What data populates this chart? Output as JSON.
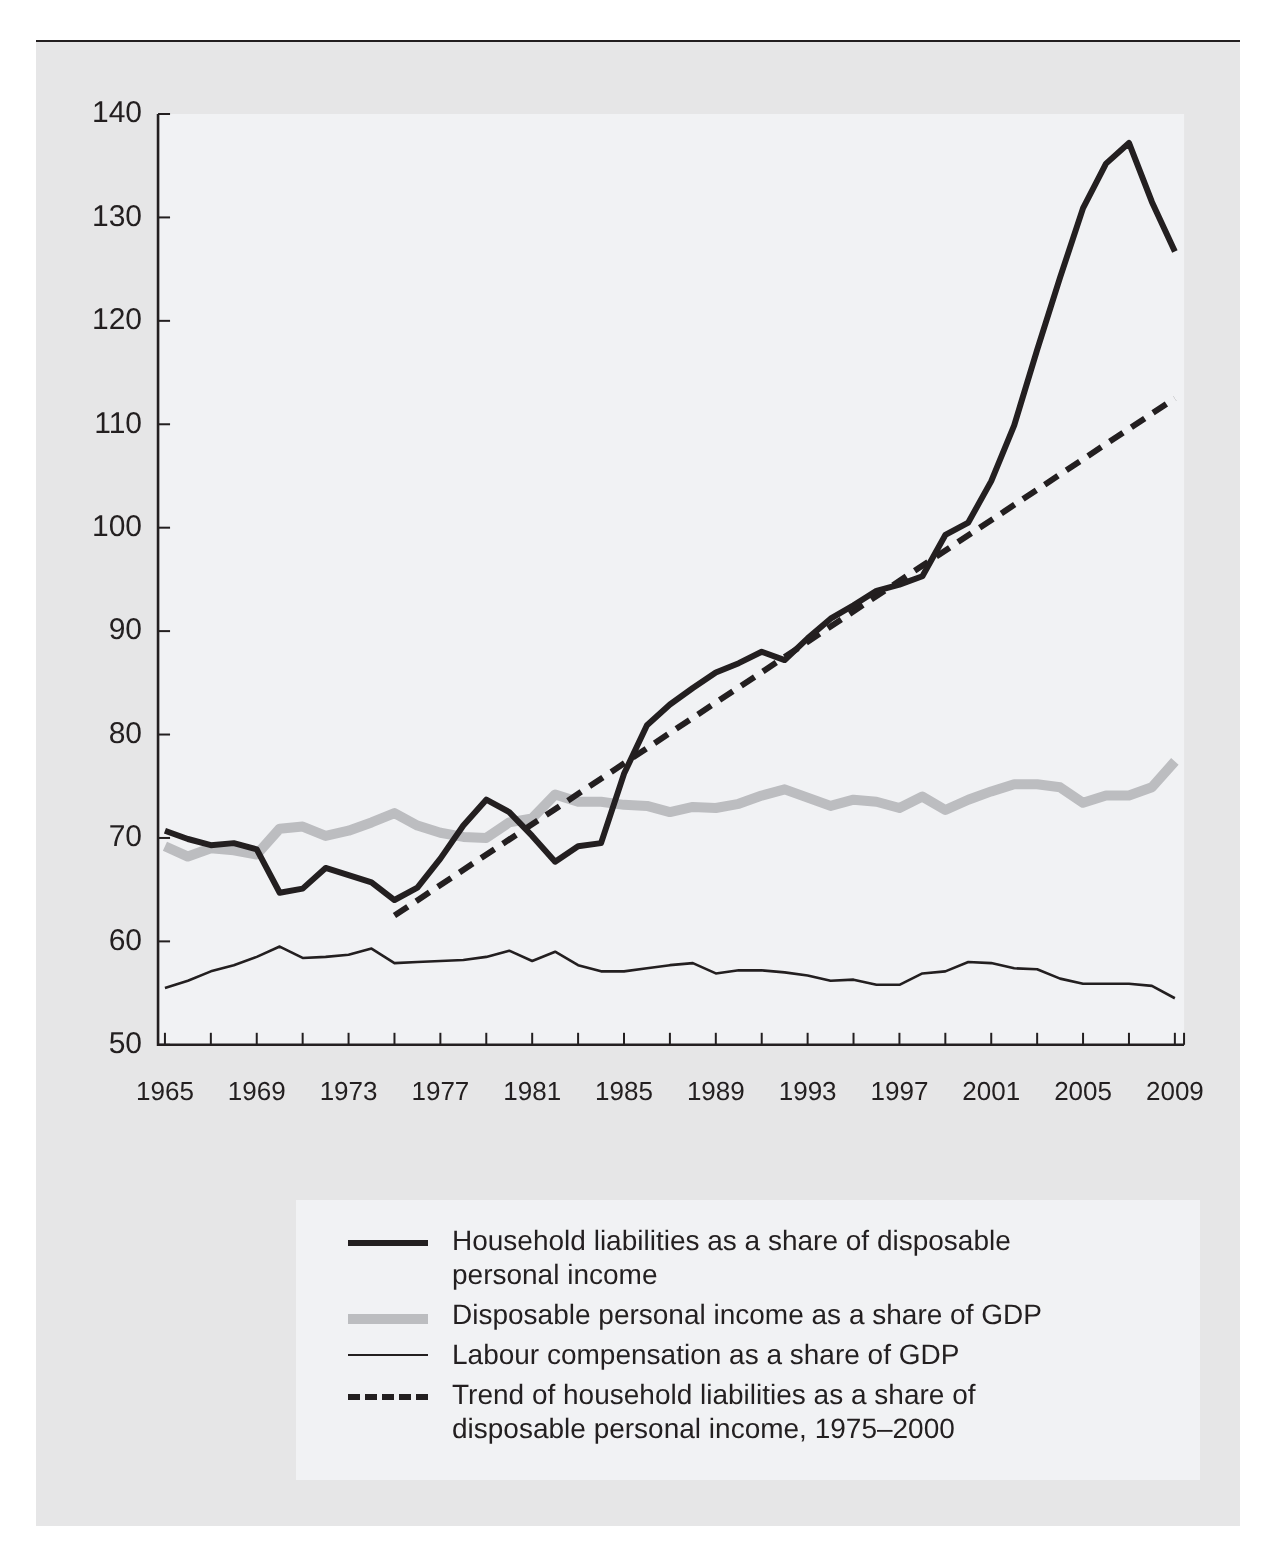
{
  "chart_data": {
    "type": "line",
    "x": [
      1965,
      1966,
      1967,
      1968,
      1969,
      1970,
      1971,
      1972,
      1973,
      1974,
      1975,
      1976,
      1977,
      1978,
      1979,
      1980,
      1981,
      1982,
      1983,
      1984,
      1985,
      1986,
      1987,
      1988,
      1989,
      1990,
      1991,
      1992,
      1993,
      1994,
      1995,
      1996,
      1997,
      1998,
      1999,
      2000,
      2001,
      2002,
      2003,
      2004,
      2005,
      2006,
      2007,
      2008,
      2009
    ],
    "series": [
      {
        "name": "Household liabilities as a share of disposable personal income",
        "color": "#231f20",
        "values": [
          70.7,
          69.9,
          69.3,
          69.5,
          68.9,
          64.7,
          65.1,
          67.1,
          66.4,
          65.7,
          64.0,
          65.2,
          68.0,
          71.2,
          73.7,
          72.5,
          70.2,
          67.7,
          69.2,
          69.5,
          76.2,
          80.9,
          82.9,
          84.5,
          86.0,
          86.9,
          88.0,
          87.2,
          89.3,
          91.2,
          92.5,
          93.9,
          94.5,
          95.3,
          99.3,
          100.5,
          104.5,
          109.9,
          117.2,
          124.2,
          130.9,
          135.2,
          137.2,
          131.5,
          126.7
        ]
      },
      {
        "name": "Disposable personal income as a share of GDP",
        "color": "#bcbdc0",
        "values": [
          69.2,
          68.2,
          69.0,
          68.8,
          68.4,
          70.9,
          71.1,
          70.2,
          70.7,
          71.5,
          72.4,
          71.2,
          70.5,
          70.1,
          70.0,
          71.5,
          71.9,
          74.2,
          73.5,
          73.5,
          73.2,
          73.1,
          72.5,
          73.0,
          72.9,
          73.3,
          74.1,
          74.7,
          73.9,
          73.1,
          73.7,
          73.5,
          72.9,
          74.0,
          72.7,
          73.7,
          74.5,
          75.2,
          75.2,
          74.9,
          73.4,
          74.1,
          74.1,
          74.9,
          77.4
        ]
      },
      {
        "name": "Labour compensation as a share of GDP",
        "color": "#231f20",
        "values": [
          55.5,
          56.2,
          57.1,
          57.7,
          58.5,
          59.5,
          58.4,
          58.5,
          58.7,
          59.3,
          57.9,
          58.0,
          58.1,
          58.2,
          58.5,
          59.1,
          58.1,
          59.0,
          57.7,
          57.1,
          57.1,
          57.4,
          57.7,
          57.9,
          56.9,
          57.2,
          57.2,
          57.0,
          56.7,
          56.2,
          56.3,
          55.8,
          55.8,
          56.9,
          57.1,
          58.0,
          57.9,
          57.4,
          57.3,
          56.4,
          55.9,
          55.9,
          55.9,
          55.7,
          54.5
        ]
      },
      {
        "name": "Trend of household liabilities as a share of disposable personal income, 1975–2000",
        "color": "#231f20",
        "line_style": "dashed",
        "x": [
          1975,
          2009
        ],
        "values": [
          62.5,
          112.5
        ]
      }
    ],
    "xlim": [
      1964.7,
      2009.4
    ],
    "xticks": [
      1965,
      {
        "value": 1967,
        "label": null
      },
      1969,
      {
        "value": 1971,
        "label": null
      },
      1973,
      {
        "value": 1975,
        "label": null
      },
      1977,
      {
        "value": 1979,
        "label": null
      },
      1981,
      {
        "value": 1983,
        "label": null
      },
      1985,
      {
        "value": 1987,
        "label": null
      },
      1989,
      {
        "value": 1991,
        "label": null
      },
      1993,
      {
        "value": 1995,
        "label": null
      },
      1997,
      {
        "value": 1999,
        "label": null
      },
      2001,
      {
        "value": 2003,
        "label": null
      },
      2005,
      {
        "value": 2007,
        "label": null
      },
      2009
    ],
    "ylim": [
      50,
      140
    ],
    "yticks": [
      50,
      60,
      70,
      80,
      90,
      100,
      110,
      120,
      130,
      140
    ],
    "grid": false,
    "legend": "bottom",
    "marker": "none",
    "line_style": "solid"
  }
}
